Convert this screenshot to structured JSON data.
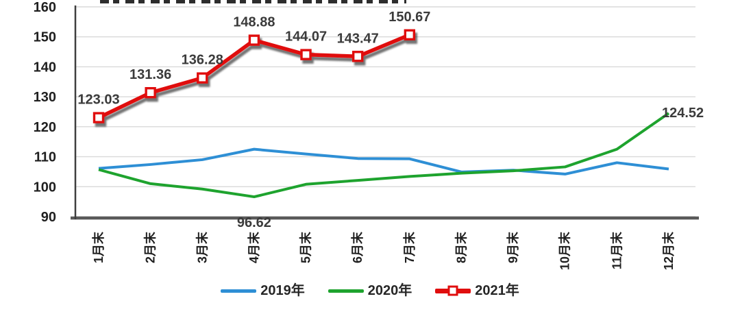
{
  "chart_data": {
    "type": "line",
    "categories": [
      "1月末",
      "2月末",
      "3月末",
      "4月末",
      "5月末",
      "6月末",
      "7月末",
      "8月末",
      "9月末",
      "10月末",
      "11月末",
      "12月末"
    ],
    "ylim": [
      90,
      160
    ],
    "yticks": [
      90,
      100,
      110,
      120,
      130,
      140,
      150,
      160
    ],
    "grid": true,
    "legend_position": "bottom",
    "series": [
      {
        "name": "2019年",
        "color": "#2E8FD5",
        "marker": "none",
        "values": [
          106.1,
          107.4,
          109.0,
          112.5,
          110.9,
          109.4,
          109.3,
          104.9,
          105.5,
          104.2,
          108.0,
          105.9
        ],
        "labels": []
      },
      {
        "name": "2020年",
        "color": "#1EA32E",
        "marker": "none",
        "values": [
          105.7,
          101.0,
          99.2,
          96.62,
          100.8,
          102.1,
          103.4,
          104.5,
          105.3,
          106.6,
          112.5,
          124.52
        ],
        "labels": [
          {
            "index": 3,
            "text": "96.62",
            "position": "below"
          },
          {
            "index": 11,
            "text": "124.52",
            "position": "right"
          }
        ]
      },
      {
        "name": "2021年",
        "color": "#E00E0E",
        "marker": "square",
        "shadow": true,
        "values": [
          123.03,
          131.36,
          136.28,
          148.88,
          144.07,
          143.47,
          150.67,
          null,
          null,
          null,
          null,
          null
        ],
        "labels": [
          {
            "index": 0,
            "text": "123.03",
            "position": "above"
          },
          {
            "index": 1,
            "text": "131.36",
            "position": "above"
          },
          {
            "index": 2,
            "text": "136.28",
            "position": "above"
          },
          {
            "index": 3,
            "text": "148.88",
            "position": "above"
          },
          {
            "index": 4,
            "text": "144.07",
            "position": "above"
          },
          {
            "index": 5,
            "text": "143.47",
            "position": "above"
          },
          {
            "index": 6,
            "text": "150.67",
            "position": "above"
          }
        ]
      }
    ]
  },
  "colors": {
    "grid": "#D9D9D9",
    "axis": "#595959",
    "y_axis_line": "#3F3F3F",
    "tick_text": "#1F1F1F",
    "data_label": "#3B3B3B"
  }
}
